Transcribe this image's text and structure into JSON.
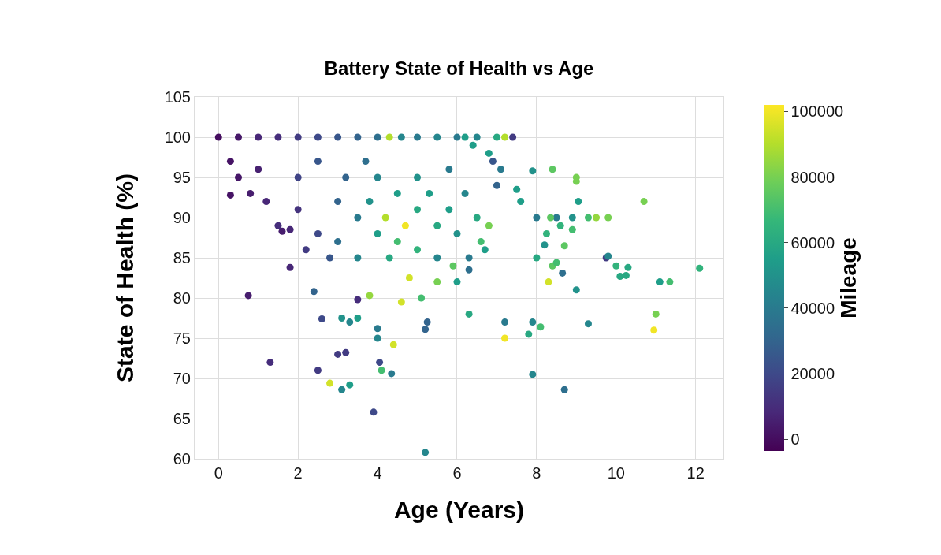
{
  "chart_data": {
    "type": "scatter",
    "title": "Battery State of Health vs Age",
    "xlabel": "Age (Years)",
    "ylabel": "State of Health (%)",
    "clabel": "Mileage",
    "xlim": [
      -0.6,
      12.7
    ],
    "xticks": [
      0,
      2,
      4,
      6,
      8,
      10,
      12
    ],
    "ylim": [
      60,
      105
    ],
    "yticks": [
      60,
      65,
      70,
      75,
      80,
      85,
      90,
      95,
      100,
      105
    ],
    "clim": [
      -3500,
      102000
    ],
    "cticks": [
      0,
      20000,
      40000,
      60000,
      80000,
      100000
    ],
    "grid": true,
    "marker": "circle",
    "series": [
      {
        "x": [
          0,
          0.5,
          1,
          1.5,
          2,
          2.5,
          3,
          3.5,
          4,
          4.3,
          4.6,
          5,
          5.5,
          6,
          0.3,
          0.5,
          0.3,
          0.8,
          1,
          1.2,
          1.5,
          1.6,
          1.8,
          2,
          2.2,
          2.0,
          2.5,
          2.5,
          2.8,
          3,
          3,
          3.2,
          3.5,
          3.5,
          3.7,
          3.8,
          4,
          4,
          4.2,
          4.3,
          4.5,
          4.5,
          4.7,
          4.8,
          5,
          5,
          5,
          5.3,
          5.5,
          5.5,
          5.8,
          5.8,
          6,
          6.2,
          6.3,
          6.5,
          6.6,
          6.8,
          6.3,
          6.7,
          5.9,
          1.3,
          0.75,
          1.8,
          2.5,
          2.6,
          2.4,
          2.8,
          3.1,
          3.3,
          3.0,
          3.2,
          3.1,
          3.3,
          3.5,
          3.5,
          3.9,
          4.0,
          4.05,
          4.1,
          4.35,
          4.4,
          4.0,
          3.8,
          4.6,
          5.2,
          5.2,
          5.25,
          5.1,
          5.5,
          6.0,
          6.3,
          7.2,
          7.2,
          7.9,
          8.7,
          7.9,
          8.1,
          7.8,
          8.3,
          9.3,
          9.0,
          8.65,
          10.95,
          11.0,
          11.1,
          11.35,
          12.1,
          10.7,
          9.8,
          9.5,
          9.3,
          9.75,
          9.8,
          10.0,
          10.1,
          10.25,
          10.3,
          9.0,
          9.0,
          9.05,
          8.4,
          7.9,
          7.1,
          6.9,
          7.2,
          7.4,
          7.0,
          6.8,
          7.6,
          7.5,
          7.0,
          8.0,
          8.5,
          8.9,
          8.35,
          8.6,
          8.9,
          8.25,
          8.2,
          8.4,
          8.5,
          8.7,
          8.0,
          6.2,
          6.5,
          6.4
        ],
        "values": [
          100,
          100,
          100,
          100,
          100,
          100,
          100,
          100,
          100,
          100,
          100,
          100,
          100,
          100,
          97,
          95,
          92.8,
          93,
          96,
          92,
          89,
          88.3,
          88.5,
          91,
          86,
          95,
          97,
          88,
          85,
          92,
          87,
          95,
          90,
          85,
          97,
          92,
          88,
          95,
          90,
          85,
          93,
          87,
          89,
          82.5,
          95,
          91,
          86,
          93,
          89,
          85,
          96,
          91,
          88,
          93,
          85,
          90,
          87,
          89,
          83.5,
          86,
          84,
          72,
          80.3,
          83.8,
          71,
          77.4,
          80.8,
          69.4,
          68.6,
          69.2,
          73,
          73.2,
          77.5,
          77,
          77.5,
          79.8,
          65.8,
          75,
          72,
          71,
          70.6,
          74.2,
          76.2,
          80.3,
          79.5,
          60.8,
          76.1,
          77,
          80,
          82,
          82,
          78,
          77,
          75,
          70.5,
          68.6,
          77,
          76.4,
          75.5,
          82,
          76.8,
          81,
          83.1,
          76,
          78,
          82,
          82,
          83.7,
          92,
          90,
          90,
          90,
          85,
          85.2,
          84,
          82.7,
          82.8,
          83.8,
          94.5,
          95,
          92,
          96,
          95.8,
          96,
          97,
          100,
          100,
          100,
          98,
          92,
          93.5,
          94,
          90,
          90,
          90,
          90,
          89,
          88.5,
          88,
          86.6,
          84,
          84.4,
          86.5,
          85,
          100,
          100,
          99
        ],
        "cvalues": [
          0,
          3000,
          8000,
          10000,
          15000,
          20000,
          25000,
          30000,
          35000,
          90000,
          45000,
          40000,
          45000,
          40000,
          2000,
          3000,
          2000,
          5000,
          6000,
          8000,
          10000,
          5000,
          8000,
          12000,
          15000,
          18000,
          25000,
          20000,
          25000,
          30000,
          35000,
          30000,
          40000,
          45000,
          35000,
          50000,
          55000,
          45000,
          90000,
          60000,
          55000,
          70000,
          100000,
          95000,
          50000,
          60000,
          65000,
          55000,
          60000,
          45000,
          40000,
          55000,
          50000,
          45000,
          40000,
          60000,
          70000,
          80000,
          35000,
          55000,
          75000,
          10000,
          5000,
          8000,
          15000,
          20000,
          30000,
          95000,
          45000,
          55000,
          15000,
          15000,
          50000,
          45000,
          55000,
          10000,
          20000,
          45000,
          20000,
          70000,
          40000,
          95000,
          40000,
          85000,
          95000,
          45000,
          30000,
          30000,
          70000,
          80000,
          55000,
          60000,
          40000,
          100000,
          45000,
          35000,
          45000,
          70000,
          60000,
          95000,
          45000,
          50000,
          35000,
          100000,
          80000,
          55000,
          70000,
          65000,
          80000,
          80000,
          85000,
          70000,
          15000,
          45000,
          65000,
          60000,
          60000,
          60000,
          80000,
          80000,
          55000,
          75000,
          50000,
          40000,
          25000,
          90000,
          15000,
          60000,
          55000,
          55000,
          55000,
          30000,
          40000,
          40000,
          50000,
          75000,
          65000,
          70000,
          65000,
          50000,
          75000,
          70000,
          75000,
          60000,
          55000,
          45000,
          55000
        ]
      }
    ]
  }
}
